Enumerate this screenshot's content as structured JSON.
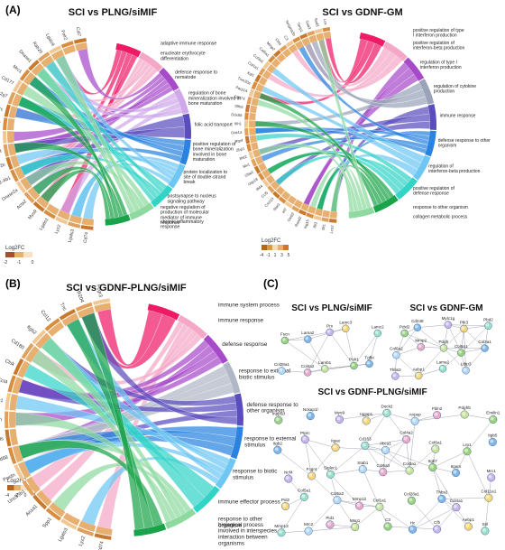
{
  "panel_labels": [
    "(A)",
    "(B)",
    "(C)"
  ],
  "chord_a1": {
    "title": "SCI vs PLNG/siMIF",
    "legend_title": "Log2FC",
    "legend_ticks": [
      "-2",
      "-1",
      "0"
    ],
    "legend_colors": [
      "#a0522d",
      "#e8b070",
      "#f6e3c5"
    ],
    "genes": [
      "Cd74",
      "Lgals3",
      "Lyz2",
      "Lgals1",
      "Myo9",
      "Acta2",
      "Dnase2a",
      "H2-Ab1",
      "Fcgr2b",
      "Ccl4",
      "Ccl3",
      "Fgl2",
      "Tfrc",
      "Pla2g7",
      "Cd177",
      "Mrc1",
      "Dnase1",
      "Rab20",
      "Lgals9",
      "Folr2",
      "Cst7"
    ],
    "terms": [
      {
        "label": "adaptive immune response",
        "color": "#ee1a66"
      },
      {
        "label": "enucleate erythrocyte differentiation",
        "color": "#f4a7c6"
      },
      {
        "label": "defense response to nematode",
        "color": "#a64ac9"
      },
      {
        "label": "regulation of bone mineralization involved in bone maturation",
        "color": "#cfa8ea"
      },
      {
        "label": "folic acid transport",
        "color": "#5c4dbf"
      },
      {
        "label": "positive regulation of bone mineralization involved in bone maturation",
        "color": "#2a83e0"
      },
      {
        "label": "protein localization to site of double-strand break",
        "color": "#6ec6f2"
      },
      {
        "label": "postsynapse to nucleus signaling pathway",
        "color": "#33d4c8"
      },
      {
        "label": "negative regulation of production of molecular mediator of immune response",
        "color": "#8dd9a0"
      },
      {
        "label": "chronic inflammatory response",
        "color": "#1aa34a"
      }
    ]
  },
  "chord_a2": {
    "title": "SCI vs GDNF-GM",
    "legend_title": "Log2FC",
    "legend_ticks": [
      "-4",
      "-1",
      "1",
      "3",
      "5"
    ],
    "legend_colors": [
      "#b5651d",
      "#d99a4a",
      "#f3dcb8",
      "#e8b070",
      "#c9792c"
    ],
    "genes": [
      "Lcn2",
      "Ifit1",
      "Ifit3",
      "Isg15",
      "Rsad2",
      "Oasl2",
      "Irf7",
      "Stat1",
      "Cxcl10",
      "Ccl5",
      "Ifi44",
      "Usp18",
      "Gbp2",
      "Mx1",
      "Bst2",
      "Zbp1",
      "Rtp4",
      "Oas1a",
      "Ifih1",
      "Ddx58",
      "Slfn5",
      "Cd274",
      "Parp14",
      "Trim30a",
      "Xaf1",
      "Col1a1",
      "Col3a1",
      "Col5a1",
      "Mmp2",
      "Ctss",
      "C3",
      "Serpina3n",
      "Timp1",
      "Saa3",
      "Sod3",
      "Lox"
    ],
    "terms": [
      {
        "label": "positive regulation of type I interferon production",
        "color": "#ee1a66"
      },
      {
        "label": "positive regulation of interferon-beta production",
        "color": "#f4a7c6"
      },
      {
        "label": "regulation of type I interferon production",
        "color": "#a64ac9"
      },
      {
        "label": "regulation of cytokine production",
        "color": "#9aa3b8"
      },
      {
        "label": "immune response",
        "color": "#5c4dbf"
      },
      {
        "label": "defense response to other organism",
        "color": "#2a83e0"
      },
      {
        "label": "regulation of interferon-beta production",
        "color": "#6ec6f2"
      },
      {
        "label": "positive regulation of defense response",
        "color": "#33d4c8"
      },
      {
        "label": "response to other organism",
        "color": "#1aa34a"
      },
      {
        "label": "collagen metabolic process",
        "color": "#8dd9a0"
      }
    ]
  },
  "chord_b": {
    "title": "SCI vs GDNF-PLNG/siMIF",
    "legend_title": "Log2FC",
    "legend_ticks": [
      "-4",
      "-2",
      "0",
      "2"
    ],
    "legend_colors": [
      "#b5651d",
      "#e8b070",
      "#f6e3c5",
      "#f2c68e"
    ],
    "genes": [
      "Cd74",
      "Lyz2",
      "Lgals3",
      "Spp1",
      "Anxa1",
      "Unc93b1",
      "Postn",
      "Cd68",
      "Fcrls",
      "Serpina3n",
      "Arg1",
      "Ccl4",
      "Ctsk",
      "Cd180",
      "Itgb2",
      "Ccl12",
      "Tnc",
      "Ifi204",
      "Fcgr3"
    ],
    "terms": [
      {
        "label": "immune system process",
        "color": "#ee1a66"
      },
      {
        "label": "immune response",
        "color": "#f4a7c6"
      },
      {
        "label": "defense response",
        "color": "#a64ac9"
      },
      {
        "label": "response to external biotic stimulus",
        "color": "#b0b7c6"
      },
      {
        "label": "defense response to other organism",
        "color": "#5c4dbf"
      },
      {
        "label": "response to external stimulus",
        "color": "#2a83e0"
      },
      {
        "label": "response to biotic stimulus",
        "color": "#6ec6f2"
      },
      {
        "label": "immune effector process",
        "color": "#33d4c8"
      },
      {
        "label": "response to other organism",
        "color": "#8dd9a0"
      },
      {
        "label": "biological process involved in interspecies interaction between organisms",
        "color": "#1aa34a"
      }
    ]
  },
  "network_c1": {
    "title": "SCI vs PLNG/siMIF",
    "nodes": [
      "Fscn",
      "Lama2",
      "Prx",
      "Lamc3",
      "Lamc2",
      "Col28a1",
      "Col4a2",
      "Lamb1",
      "Polr1",
      "Tgfbi"
    ]
  },
  "network_c2": {
    "title": "SCI vs GDNF-GM",
    "nodes": [
      "Pdxl2",
      "Cd248",
      "Mylc1g",
      "Ptk3",
      "Pbd2",
      "Col6a2",
      "Mmp2",
      "Pdgfr",
      "Col5a1",
      "Col3a1",
      "Thbs2",
      "Aebp1",
      "Lama2",
      "Ltbp3"
    ]
  },
  "network_c3": {
    "title": "SCI vs GDNF-PLNG/siMIF",
    "nodes": [
      "Inpp5d",
      "Nckap1l",
      "Myo9",
      "Iqgap1",
      "Dock2",
      "Anpep",
      "Fbln2",
      "Pdgfrb",
      "Emilin1",
      "Itgb2",
      "Ptprc",
      "Itgax",
      "Cd163",
      "Abca1",
      "Col4a2",
      "Col6a1",
      "Lrp1",
      "Itgb5",
      "Ncf4",
      "Fcgr4",
      "Siglec1",
      "Stab1",
      "Col6a3",
      "Col3a1",
      "Itgb7",
      "Itgam",
      "Mrc1",
      "Pid2",
      "Col5a1",
      "Col5a2",
      "Mmp12",
      "Col1a1",
      "Col28a1",
      "Thbs2",
      "Col4a1",
      "Col11a1",
      "Mmp13",
      "Mrc2",
      "Pid1",
      "Msg1",
      "C3",
      "Hc",
      "Cfh",
      "Aebp1",
      "Sirl"
    ]
  }
}
